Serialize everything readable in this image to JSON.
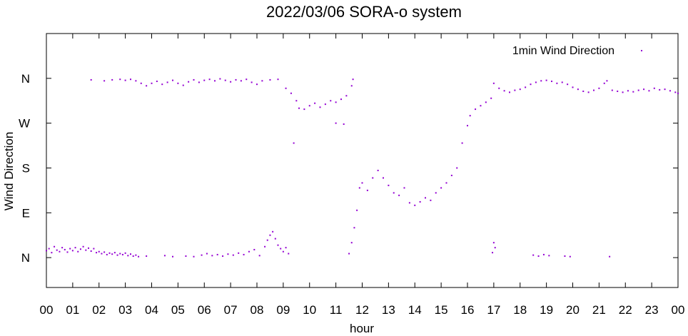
{
  "chart_data": {
    "type": "scatter",
    "title": "2022/03/06 SORA-o system",
    "xlabel": "hour",
    "ylabel": "Wind Direction",
    "x_range": [
      0,
      24
    ],
    "y_range": [
      -60,
      450
    ],
    "x_ticks": [
      {
        "value": 0,
        "label": "00"
      },
      {
        "value": 1,
        "label": "01"
      },
      {
        "value": 2,
        "label": "02"
      },
      {
        "value": 3,
        "label": "03"
      },
      {
        "value": 4,
        "label": "04"
      },
      {
        "value": 5,
        "label": "05"
      },
      {
        "value": 6,
        "label": "06"
      },
      {
        "value": 7,
        "label": "07"
      },
      {
        "value": 8,
        "label": "08"
      },
      {
        "value": 9,
        "label": "09"
      },
      {
        "value": 10,
        "label": "10"
      },
      {
        "value": 11,
        "label": "11"
      },
      {
        "value": 12,
        "label": "12"
      },
      {
        "value": 13,
        "label": "13"
      },
      {
        "value": 14,
        "label": "14"
      },
      {
        "value": 15,
        "label": "15"
      },
      {
        "value": 16,
        "label": "16"
      },
      {
        "value": 17,
        "label": "17"
      },
      {
        "value": 18,
        "label": "18"
      },
      {
        "value": 19,
        "label": "19"
      },
      {
        "value": 20,
        "label": "20"
      },
      {
        "value": 21,
        "label": "21"
      },
      {
        "value": 22,
        "label": "22"
      },
      {
        "value": 23,
        "label": "23"
      },
      {
        "value": 24,
        "label": "00"
      }
    ],
    "y_ticks": [
      {
        "value": 0,
        "label": "N"
      },
      {
        "value": 90,
        "label": "E"
      },
      {
        "value": 180,
        "label": "S"
      },
      {
        "value": 270,
        "label": "W"
      },
      {
        "value": 360,
        "label": "N"
      }
    ],
    "legend_position": "top-right",
    "grid": false,
    "series": [
      {
        "name": "1min Wind Direction",
        "color": "#9400d3",
        "points": [
          [
            0.0,
            14
          ],
          [
            0.1,
            18
          ],
          [
            0.2,
            10
          ],
          [
            0.3,
            22
          ],
          [
            0.4,
            15
          ],
          [
            0.5,
            12
          ],
          [
            0.6,
            20
          ],
          [
            0.7,
            16
          ],
          [
            0.8,
            11
          ],
          [
            0.9,
            18
          ],
          [
            1.0,
            14
          ],
          [
            1.1,
            20
          ],
          [
            1.2,
            12
          ],
          [
            1.3,
            17
          ],
          [
            1.4,
            22
          ],
          [
            1.5,
            15
          ],
          [
            1.6,
            19
          ],
          [
            1.7,
            13
          ],
          [
            1.8,
            18
          ],
          [
            1.9,
            10
          ],
          [
            2.0,
            12
          ],
          [
            2.1,
            8
          ],
          [
            2.2,
            11
          ],
          [
            2.3,
            6
          ],
          [
            2.4,
            9
          ],
          [
            2.5,
            7
          ],
          [
            2.6,
            10
          ],
          [
            2.7,
            5
          ],
          [
            2.8,
            8
          ],
          [
            2.9,
            6
          ],
          [
            3.0,
            9
          ],
          [
            3.1,
            4
          ],
          [
            3.2,
            7
          ],
          [
            3.3,
            3
          ],
          [
            3.4,
            5
          ],
          [
            3.5,
            2
          ],
          [
            3.8,
            3
          ],
          [
            4.5,
            4
          ],
          [
            4.8,
            2
          ],
          [
            5.3,
            3
          ],
          [
            5.6,
            2
          ],
          [
            5.9,
            5
          ],
          [
            6.1,
            8
          ],
          [
            6.3,
            4
          ],
          [
            6.5,
            6
          ],
          [
            6.7,
            3
          ],
          [
            6.9,
            7
          ],
          [
            7.1,
            5
          ],
          [
            7.3,
            9
          ],
          [
            7.5,
            6
          ],
          [
            7.7,
            12
          ],
          [
            7.9,
            16
          ],
          [
            8.1,
            4
          ],
          [
            8.3,
            22
          ],
          [
            8.4,
            35
          ],
          [
            8.5,
            45
          ],
          [
            8.6,
            52
          ],
          [
            8.7,
            38
          ],
          [
            8.8,
            25
          ],
          [
            8.9,
            18
          ],
          [
            9.0,
            12
          ],
          [
            9.1,
            20
          ],
          [
            9.2,
            8
          ],
          [
            11.5,
            8
          ],
          [
            11.6,
            30
          ],
          [
            11.7,
            60
          ],
          [
            11.8,
            95
          ],
          [
            11.9,
            140
          ],
          [
            1.7,
            357
          ],
          [
            2.2,
            355
          ],
          [
            2.5,
            357
          ],
          [
            2.8,
            358
          ],
          [
            3.0,
            356
          ],
          [
            3.2,
            358
          ],
          [
            3.4,
            355
          ],
          [
            3.6,
            350
          ],
          [
            3.8,
            345
          ],
          [
            4.0,
            350
          ],
          [
            4.2,
            354
          ],
          [
            4.4,
            348
          ],
          [
            4.6,
            352
          ],
          [
            4.8,
            356
          ],
          [
            5.0,
            350
          ],
          [
            5.2,
            346
          ],
          [
            5.4,
            353
          ],
          [
            5.6,
            357
          ],
          [
            5.8,
            352
          ],
          [
            6.0,
            356
          ],
          [
            6.2,
            358
          ],
          [
            6.4,
            355
          ],
          [
            6.6,
            359
          ],
          [
            6.8,
            356
          ],
          [
            7.0,
            353
          ],
          [
            7.2,
            357
          ],
          [
            7.4,
            355
          ],
          [
            7.6,
            358
          ],
          [
            7.8,
            352
          ],
          [
            8.0,
            348
          ],
          [
            8.2,
            355
          ],
          [
            8.5,
            357
          ],
          [
            8.8,
            358
          ],
          [
            9.1,
            340
          ],
          [
            9.3,
            330
          ],
          [
            9.5,
            315
          ],
          [
            9.6,
            300
          ],
          [
            9.8,
            298
          ],
          [
            10.0,
            305
          ],
          [
            10.2,
            310
          ],
          [
            10.4,
            302
          ],
          [
            10.6,
            308
          ],
          [
            10.8,
            315
          ],
          [
            11.0,
            312
          ],
          [
            11.2,
            318
          ],
          [
            11.4,
            325
          ],
          [
            11.6,
            345
          ],
          [
            11.65,
            358
          ],
          [
            11.0,
            270
          ],
          [
            11.3,
            268
          ],
          [
            9.4,
            230
          ],
          [
            12.0,
            150
          ],
          [
            12.2,
            135
          ],
          [
            12.4,
            160
          ],
          [
            12.6,
            175
          ],
          [
            12.8,
            160
          ],
          [
            13.0,
            145
          ],
          [
            13.2,
            130
          ],
          [
            13.4,
            125
          ],
          [
            13.6,
            140
          ],
          [
            13.8,
            110
          ],
          [
            14.0,
            105
          ],
          [
            14.2,
            112
          ],
          [
            14.4,
            120
          ],
          [
            14.6,
            115
          ],
          [
            14.8,
            130
          ],
          [
            15.0,
            140
          ],
          [
            15.2,
            150
          ],
          [
            15.4,
            165
          ],
          [
            15.6,
            180
          ],
          [
            15.8,
            230
          ],
          [
            16.0,
            265
          ],
          [
            16.1,
            285
          ],
          [
            16.3,
            298
          ],
          [
            16.5,
            305
          ],
          [
            16.7,
            312
          ],
          [
            16.9,
            320
          ],
          [
            17.0,
            350
          ],
          [
            17.2,
            340
          ],
          [
            17.4,
            335
          ],
          [
            17.6,
            332
          ],
          [
            17.8,
            336
          ],
          [
            18.0,
            338
          ],
          [
            18.2,
            342
          ],
          [
            18.4,
            348
          ],
          [
            18.6,
            352
          ],
          [
            18.8,
            355
          ],
          [
            19.0,
            356
          ],
          [
            19.2,
            354
          ],
          [
            19.4,
            350
          ],
          [
            19.6,
            352
          ],
          [
            19.8,
            348
          ],
          [
            20.0,
            342
          ],
          [
            20.2,
            338
          ],
          [
            20.4,
            334
          ],
          [
            20.6,
            332
          ],
          [
            20.8,
            336
          ],
          [
            21.0,
            340
          ],
          [
            21.2,
            350
          ],
          [
            21.3,
            355
          ],
          [
            21.5,
            336
          ],
          [
            21.7,
            334
          ],
          [
            21.9,
            332
          ],
          [
            22.1,
            335
          ],
          [
            22.3,
            333
          ],
          [
            22.5,
            336
          ],
          [
            22.7,
            338
          ],
          [
            22.9,
            335
          ],
          [
            23.1,
            340
          ],
          [
            23.3,
            337
          ],
          [
            23.5,
            338
          ],
          [
            23.7,
            335
          ],
          [
            23.9,
            332
          ],
          [
            24.0,
            330
          ],
          [
            17.0,
            30
          ],
          [
            17.05,
            20
          ],
          [
            16.95,
            10
          ],
          [
            18.5,
            5
          ],
          [
            18.7,
            3
          ],
          [
            18.9,
            6
          ],
          [
            19.1,
            4
          ],
          [
            19.7,
            3
          ],
          [
            19.9,
            2
          ],
          [
            21.4,
            2
          ]
        ]
      }
    ]
  }
}
